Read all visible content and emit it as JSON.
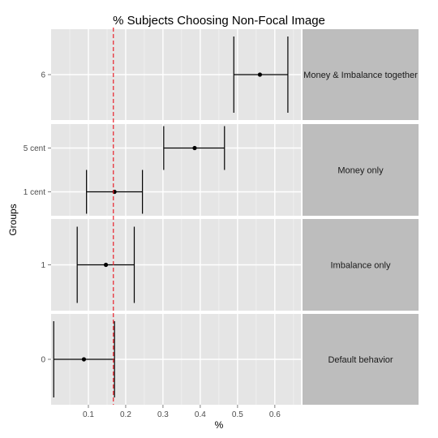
{
  "chart_data": {
    "type": "errorbar",
    "title": "% Subjects Choosing Non-Focal Image",
    "xlabel": "%",
    "ylabel": "Groups",
    "xlim": [
      0,
      0.67
    ],
    "x_ticks": [
      "0.1",
      "0.2",
      "0.3",
      "0.4",
      "0.5",
      "0.6"
    ],
    "x_tick_values": [
      0.1,
      0.2,
      0.3,
      0.4,
      0.5,
      0.6
    ],
    "reference_line": {
      "x": 0.167,
      "color": "#e8202a",
      "style": "dashed"
    },
    "grid": true,
    "panel_background": "#e5e5e5",
    "strip_background": "#bdbdbd",
    "point_color": "#000000",
    "panels": [
      {
        "strip_label": "Money & Imbalance together",
        "points": [
          {
            "group": "6",
            "mean": 0.56,
            "lower": 0.49,
            "upper": 0.635
          }
        ]
      },
      {
        "strip_label": "Money only",
        "points": [
          {
            "group": "5 cent",
            "mean": 0.385,
            "lower": 0.302,
            "upper": 0.465
          },
          {
            "group": "1 cent",
            "mean": 0.17,
            "lower": 0.095,
            "upper": 0.245
          }
        ]
      },
      {
        "strip_label": "Imbalance only",
        "points": [
          {
            "group": "1",
            "mean": 0.147,
            "lower": 0.07,
            "upper": 0.223
          }
        ]
      },
      {
        "strip_label": "Default behavior",
        "points": [
          {
            "group": "0",
            "mean": 0.088,
            "lower": 0.007,
            "upper": 0.17
          }
        ]
      }
    ]
  }
}
